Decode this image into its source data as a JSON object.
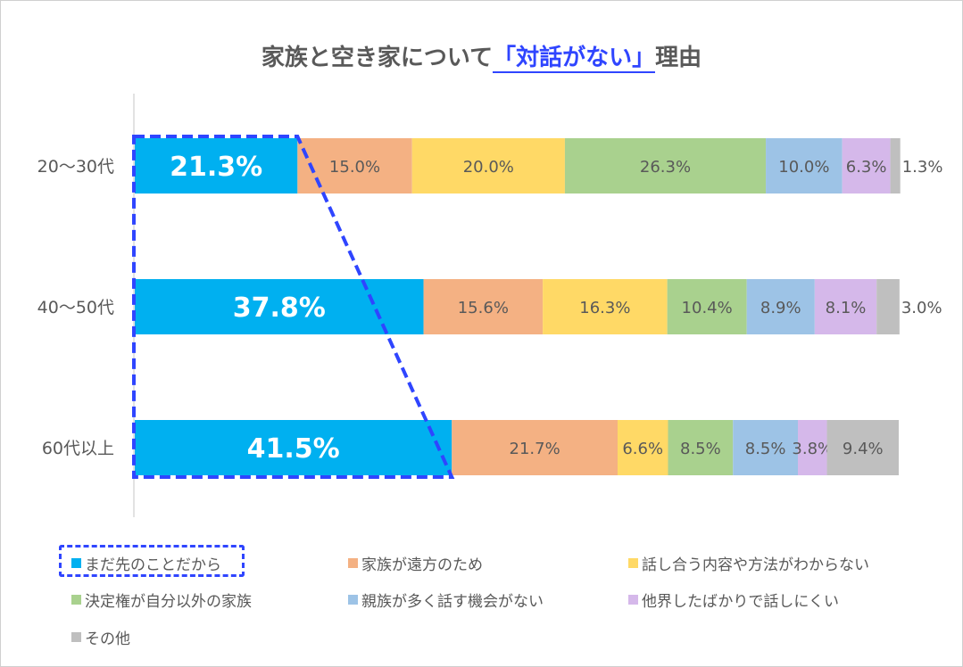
{
  "chart_data": {
    "type": "bar",
    "orientation": "horizontal",
    "stacked": "100%",
    "title": {
      "prefix": "家族と空き家について",
      "highlight": "「対話がない」",
      "suffix": "理由"
    },
    "categories": [
      "20～30代",
      "40～50代",
      "60代以上"
    ],
    "series": [
      {
        "name": "まだ先のことだから",
        "color": "#00b0f0",
        "values": [
          21.3,
          37.8,
          41.5
        ]
      },
      {
        "name": "家族が遠方のため",
        "color": "#f4b183",
        "values": [
          15.0,
          15.6,
          21.7
        ]
      },
      {
        "name": "話し合う内容や方法がわからない",
        "color": "#ffd966",
        "values": [
          20.0,
          16.3,
          6.6
        ]
      },
      {
        "name": "決定権が自分以外の家族",
        "color": "#a9d18e",
        "values": [
          26.3,
          10.4,
          8.5
        ]
      },
      {
        "name": "親族が多く話す機会がない",
        "color": "#9dc3e6",
        "values": [
          10.0,
          8.9,
          8.5
        ]
      },
      {
        "name": "他界したばかりで話しにくい",
        "color": "#d5b8ea",
        "values": [
          6.3,
          8.1,
          3.8
        ]
      },
      {
        "name": "その他",
        "color": "#bfbfbf",
        "values": [
          1.3,
          3.0,
          9.4
        ]
      }
    ],
    "value_format": "percent_1dp",
    "xlim": [
      0,
      100
    ],
    "grid": false,
    "legend_position": "bottom",
    "highlight_color": "#2f45ff"
  }
}
